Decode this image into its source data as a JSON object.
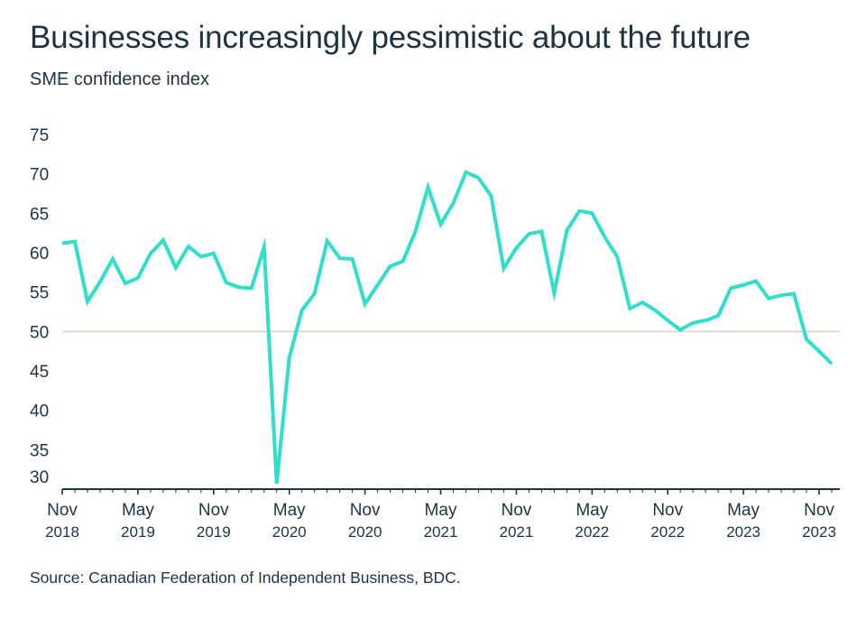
{
  "title": "Businesses increasingly pessimistic about the future",
  "subtitle": "SME confidence index",
  "source": "Source: Canadian Federation of Independent Business, BDC.",
  "colors": {
    "line": "#2ee0c9",
    "reference_line": "#e3d3ce",
    "axis": "#1c3441",
    "text": "#1c3441"
  },
  "chart_data": {
    "type": "line",
    "title": "Businesses increasingly pessimistic about the future",
    "subtitle": "SME confidence index",
    "xlabel": "",
    "ylabel": "",
    "ylim": [
      30,
      75
    ],
    "y_ticks": [
      "75",
      "70",
      "65",
      "60",
      "55",
      "50",
      "45",
      "40",
      "35",
      "30"
    ],
    "reference_line_y": 50,
    "grid": false,
    "legend": "none",
    "x_ticks": [
      {
        "month": "Nov",
        "year": "2018"
      },
      {
        "month": "May",
        "year": "2019"
      },
      {
        "month": "Nov",
        "year": "2019"
      },
      {
        "month": "May",
        "year": "2020"
      },
      {
        "month": "Nov",
        "year": "2020"
      },
      {
        "month": "May",
        "year": "2021"
      },
      {
        "month": "Nov",
        "year": "2021"
      },
      {
        "month": "May",
        "year": "2022"
      },
      {
        "month": "Nov",
        "year": "2022"
      },
      {
        "month": "May",
        "year": "2023"
      },
      {
        "month": "Nov",
        "year": "2023"
      }
    ],
    "x": [
      "2018-11",
      "2018-12",
      "2019-01",
      "2019-02",
      "2019-03",
      "2019-04",
      "2019-05",
      "2019-06",
      "2019-07",
      "2019-08",
      "2019-09",
      "2019-10",
      "2019-11",
      "2019-12",
      "2020-01",
      "2020-02",
      "2020-03",
      "2020-04",
      "2020-05",
      "2020-06",
      "2020-07",
      "2020-08",
      "2020-09",
      "2020-10",
      "2020-11",
      "2020-12",
      "2021-01",
      "2021-02",
      "2021-03",
      "2021-04",
      "2021-05",
      "2021-06",
      "2021-07",
      "2021-08",
      "2021-09",
      "2021-10",
      "2021-11",
      "2021-12",
      "2022-01",
      "2022-02",
      "2022-03",
      "2022-04",
      "2022-05",
      "2022-06",
      "2022-07",
      "2022-08",
      "2022-09",
      "2022-10",
      "2022-11",
      "2022-12",
      "2023-01",
      "2023-02",
      "2023-03",
      "2023-04",
      "2023-05",
      "2023-06",
      "2023-07",
      "2023-08",
      "2023-09",
      "2023-10",
      "2023-11",
      "2023-12"
    ],
    "series": [
      {
        "values": [
          61.2,
          61.4,
          53.8,
          56.3,
          59.2,
          56.1,
          56.8,
          59.9,
          61.6,
          58.1,
          60.8,
          59.5,
          59.9,
          56.2,
          55.6,
          55.5,
          60.7,
          30.7,
          46.7,
          52.7,
          54.8,
          61.5,
          59.3,
          59.2,
          53.5,
          55.9,
          58.3,
          58.9,
          62.7,
          68.3,
          63.6,
          66.3,
          70.2,
          69.5,
          67.2,
          58.0,
          60.6,
          62.4,
          62.7,
          54.9,
          62.8,
          65.3,
          65.0,
          62.0,
          59.5,
          52.9,
          53.7,
          52.7,
          51.4,
          50.2,
          51.1,
          51.4,
          52.0,
          55.5,
          55.9,
          56.4,
          54.2,
          54.6,
          54.8,
          49.0,
          47.5,
          45.9
        ]
      }
    ]
  }
}
